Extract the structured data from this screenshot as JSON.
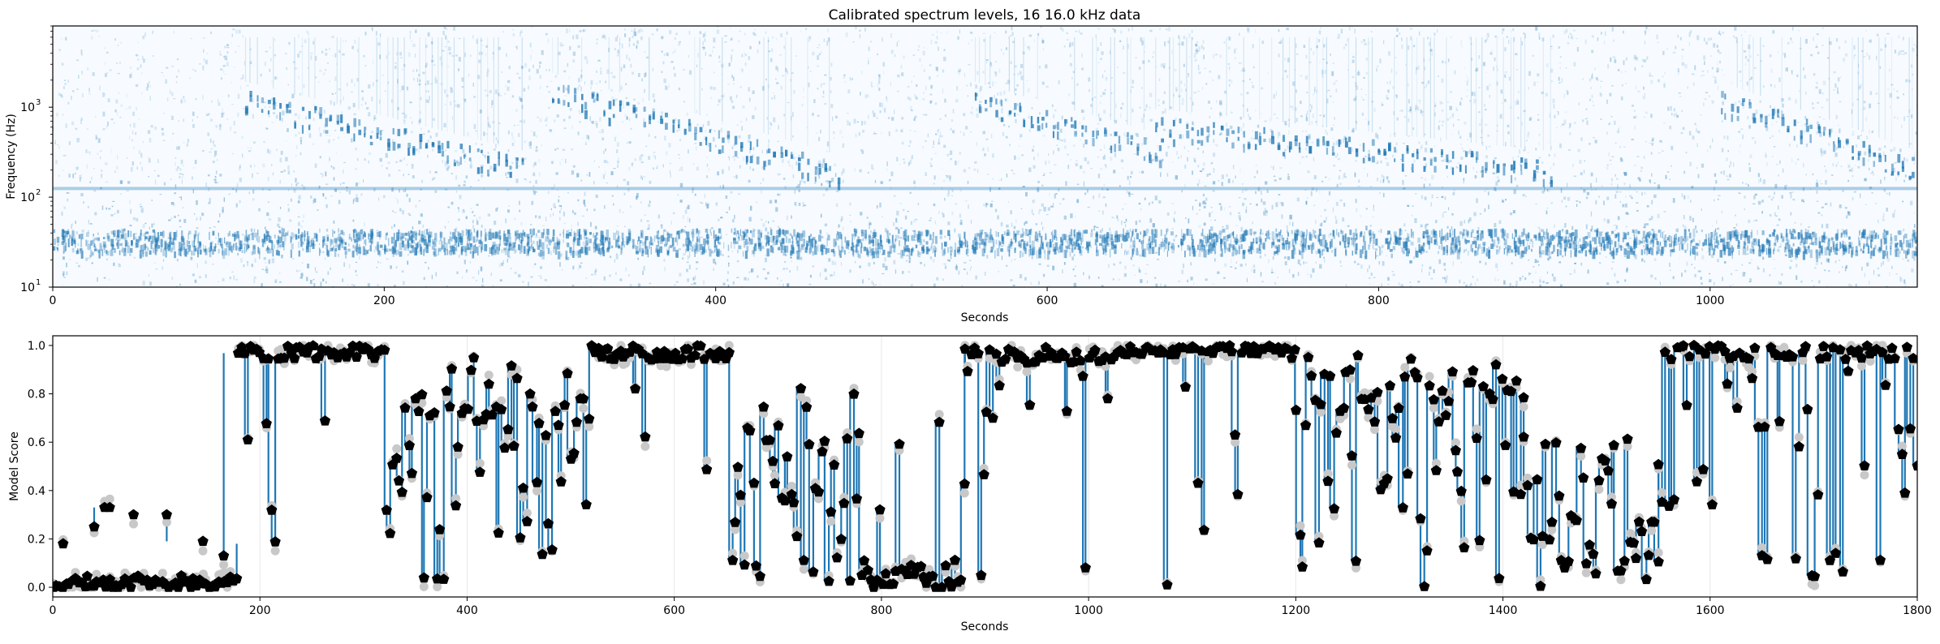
{
  "chart_data": [
    {
      "type": "heatmap",
      "title": "Calibrated spectrum levels, 16 16.0 kHz data",
      "xlabel": "Seconds",
      "ylabel": "Frequency (Hz)",
      "xlim": [
        0,
        1125
      ],
      "ylim": [
        10,
        8000
      ],
      "yscale": "log",
      "x_ticks": [
        "0",
        "200",
        "400",
        "600",
        "800",
        "1000"
      ],
      "y_ticks": [
        "10",
        "10",
        "10"
      ],
      "y_tick_exponents": [
        "1",
        "2",
        "3"
      ],
      "colormap": "Blues",
      "color": "#1f77b4",
      "grid": false,
      "features": {
        "noise_band_hz": [
          25,
          45
        ],
        "noise_line_hz": 130,
        "song_sequences": [
          {
            "start": 115,
            "end": 285,
            "high_hz": 1200,
            "low_hz": 200
          },
          {
            "start": 300,
            "end": 475,
            "high_hz": 1500,
            "low_hz": 180
          },
          {
            "start": 555,
            "end": 670,
            "high_hz": 1200,
            "low_hz": 300
          },
          {
            "start": 665,
            "end": 905,
            "high_hz": 600,
            "low_hz": 200
          },
          {
            "start": 1005,
            "end": 1125,
            "high_hz": 1200,
            "low_hz": 200
          }
        ]
      }
    },
    {
      "type": "scatter",
      "xlabel": "Seconds",
      "ylabel": "Model Score",
      "xlim": [
        0,
        1800
      ],
      "ylim": [
        -0.04,
        1.04
      ],
      "x_ticks": [
        "0",
        "200",
        "400",
        "600",
        "800",
        "1000",
        "1200",
        "1400",
        "1600",
        "1800"
      ],
      "y_ticks": [
        "0.0",
        "0.2",
        "0.4",
        "0.6",
        "0.8",
        "1.0"
      ],
      "grid": "x-only, faint",
      "series": [
        {
          "marker": "circle",
          "color": "#c8c8c8"
        },
        {
          "marker": "pentagon",
          "color": "#000000"
        },
        {
          "marker": "stem",
          "color": "#1f77b4"
        }
      ],
      "sample_interval_s": 3,
      "segments": [
        {
          "start": 0,
          "end": 178,
          "mean": 0.02,
          "spread": 0.03,
          "spikes": [
            [
              10,
              0.18
            ],
            [
              40,
              0.25
            ],
            [
              50,
              0.33
            ],
            [
              55,
              0.33
            ],
            [
              78,
              0.3
            ],
            [
              110,
              0.3
            ],
            [
              145,
              0.19
            ],
            [
              165,
              0.13
            ]
          ]
        },
        {
          "start": 178,
          "end": 322,
          "mean": 0.97,
          "spread": 0.03,
          "drop_prob": 0.12
        },
        {
          "start": 322,
          "end": 520,
          "mean": 0.8,
          "spread": 0.15,
          "drop_prob": 0.45
        },
        {
          "start": 520,
          "end": 655,
          "mean": 0.97,
          "spread": 0.03,
          "drop_prob": 0.1
        },
        {
          "start": 655,
          "end": 780,
          "mean": 0.55,
          "spread": 0.3,
          "drop_prob": 0.45
        },
        {
          "start": 780,
          "end": 880,
          "mean": 0.05,
          "spread": 0.06,
          "rise_prob": 0.25
        },
        {
          "start": 880,
          "end": 1030,
          "mean": 0.96,
          "spread": 0.04,
          "drop_prob": 0.3
        },
        {
          "start": 1030,
          "end": 1200,
          "mean": 0.98,
          "spread": 0.02,
          "drop_prob": 0.06
        },
        {
          "start": 1200,
          "end": 1420,
          "mean": 0.85,
          "spread": 0.12,
          "drop_prob": 0.55
        },
        {
          "start": 1420,
          "end": 1550,
          "mean": 0.35,
          "spread": 0.3,
          "drop_prob": 0.3
        },
        {
          "start": 1550,
          "end": 1800,
          "mean": 0.97,
          "spread": 0.03,
          "drop_prob": 0.35
        }
      ]
    }
  ]
}
